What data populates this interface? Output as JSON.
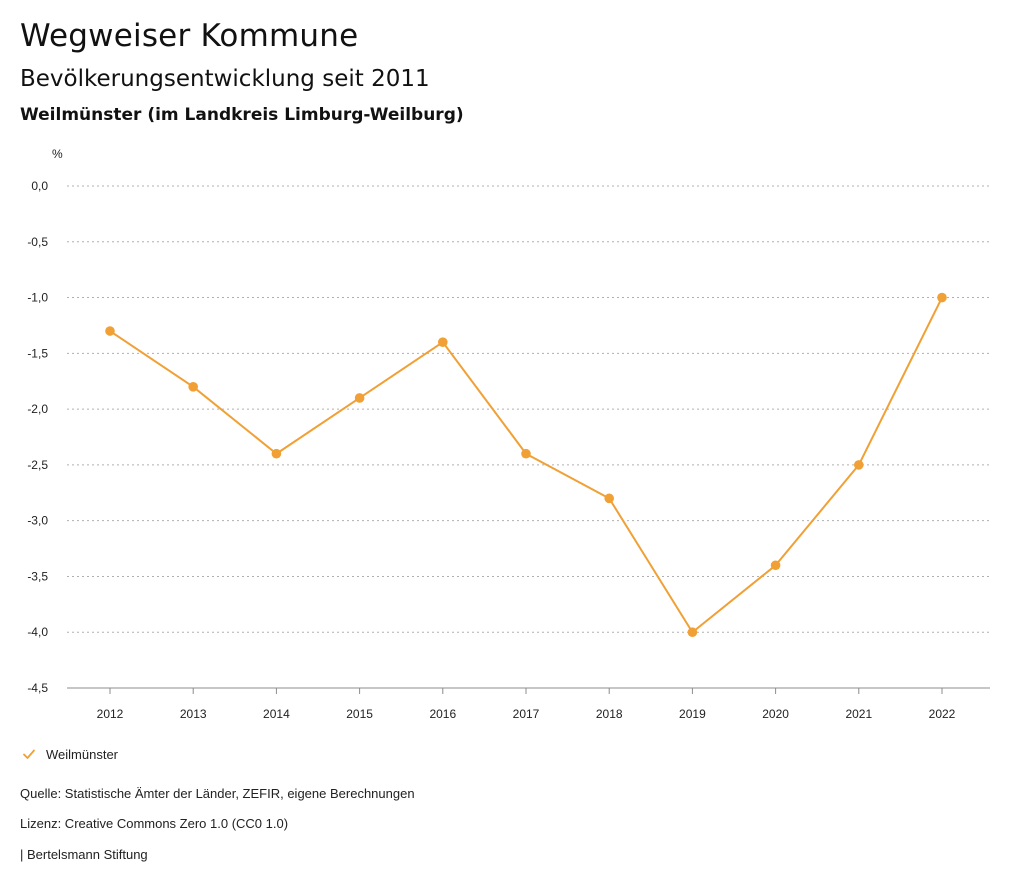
{
  "header": {
    "title": "Wegweiser Kommune",
    "subtitle": "Bevölkerungsentwicklung seit 2011",
    "region": "Weilmünster (im Landkreis Limburg-Weilburg)"
  },
  "legend": {
    "label": "Weilmünster",
    "icon": "checkmark-icon"
  },
  "footer": {
    "source": "Quelle: Statistische Ämter der Länder, ZEFIR, eigene Berechnungen",
    "license": "Lizenz: Creative Commons Zero 1.0 (CC0 1.0)",
    "publisher": "| Bertelsmann Stiftung"
  },
  "colors": {
    "series": "#f0a035",
    "grid": "#b0b0b0",
    "axis": "#8c8c8c",
    "text": "#222222"
  },
  "chart_data": {
    "type": "line",
    "title": "Bevölkerungsentwicklung seit 2011",
    "subtitle": "Weilmünster (im Landkreis Limburg-Weilburg)",
    "xlabel": "",
    "ylabel": "%",
    "grid": true,
    "legend_position": "bottom-left",
    "categories": [
      "2012",
      "2013",
      "2014",
      "2015",
      "2016",
      "2017",
      "2018",
      "2019",
      "2020",
      "2021",
      "2022"
    ],
    "ylim": [
      -4.5,
      0.0
    ],
    "yticks": [
      0.0,
      -0.5,
      -1.0,
      -1.5,
      -2.0,
      -2.5,
      -3.0,
      -3.5,
      -4.0,
      -4.5
    ],
    "ytick_labels": [
      "0,0",
      "-0,5",
      "-1,0",
      "-1,5",
      "-2,0",
      "-2,5",
      "-3,0",
      "-3,5",
      "-4,0",
      "-4,5"
    ],
    "series": [
      {
        "name": "Weilmünster",
        "values": [
          -1.3,
          -1.8,
          -2.4,
          -1.9,
          -1.4,
          -2.4,
          -2.8,
          -4.0,
          -3.4,
          -2.5,
          -1.0
        ]
      }
    ]
  }
}
